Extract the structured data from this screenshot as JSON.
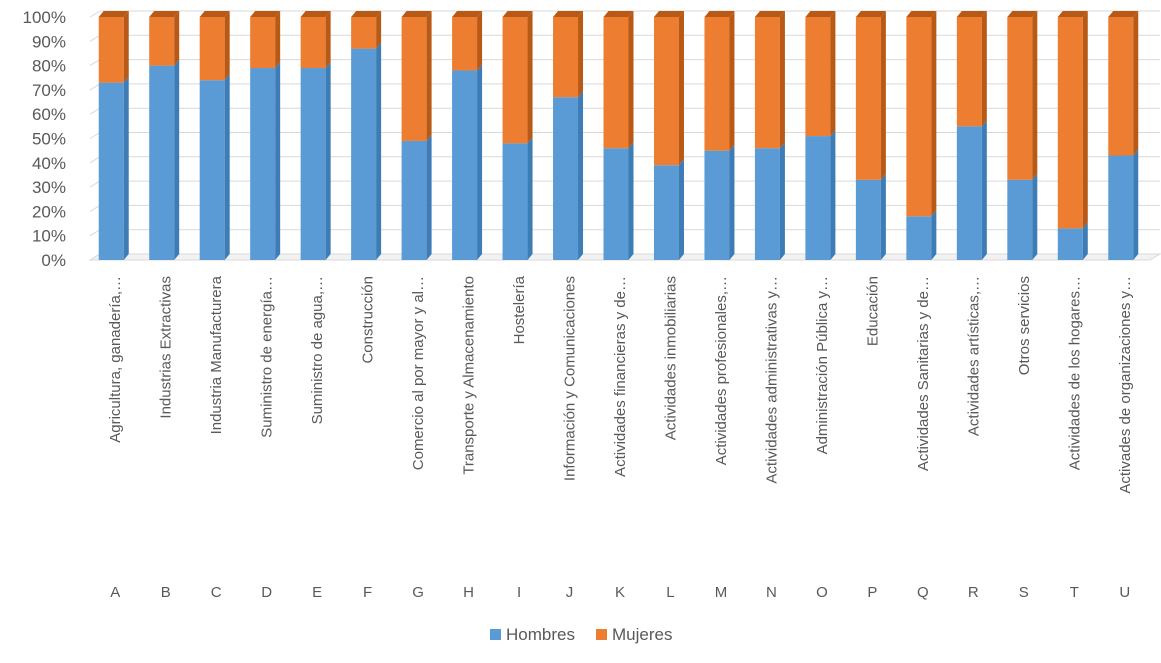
{
  "chart_data": {
    "type": "bar",
    "stacked": true,
    "percent_stacked": true,
    "style": "3d-column",
    "grid": true,
    "legend_position": "bottom",
    "ylim": [
      0,
      100
    ],
    "yticks": [
      "0%",
      "10%",
      "20%",
      "30%",
      "40%",
      "50%",
      "60%",
      "70%",
      "80%",
      "90%",
      "100%"
    ],
    "categories": [
      "A",
      "B",
      "C",
      "D",
      "E",
      "F",
      "G",
      "H",
      "I",
      "J",
      "K",
      "L",
      "M",
      "N",
      "O",
      "P",
      "Q",
      "R",
      "S",
      "T",
      "U"
    ],
    "category_names": [
      "Agricultura, ganadería,…",
      "Industrias Extractivas",
      "Industria Manufacturera",
      "Suministro de energía…",
      "Suministro de agua,…",
      "Construcción",
      "Comercio al por mayor y al…",
      "Transporte y Almacenamiento",
      "Hostelería",
      "Información y Comunicaciones",
      "Actividades financieras y de…",
      "Actividades inmobiliarias",
      "Actividades profesionales,…",
      "Actividades administrativas y…",
      "Administración Pública y…",
      "Educación",
      "Actividades Sanitarias y de…",
      "Actividades artísticas,…",
      "Otros servicios",
      "Actividades de los hogares…",
      "Activades de organizaciones y…"
    ],
    "series": [
      {
        "name": "Hombres",
        "color": "#5B9BD5",
        "side_color": "#3E7CB6",
        "values": [
          73,
          80,
          74,
          79,
          79,
          87,
          49,
          78,
          48,
          67,
          46,
          39,
          45,
          46,
          51,
          33,
          18,
          55,
          33,
          13,
          43
        ]
      },
      {
        "name": "Mujeres",
        "color": "#ED7D31",
        "side_color": "#B85A16",
        "values": [
          27,
          20,
          26,
          21,
          21,
          13,
          51,
          22,
          52,
          33,
          54,
          61,
          55,
          54,
          49,
          67,
          82,
          45,
          67,
          87,
          57
        ]
      }
    ]
  }
}
